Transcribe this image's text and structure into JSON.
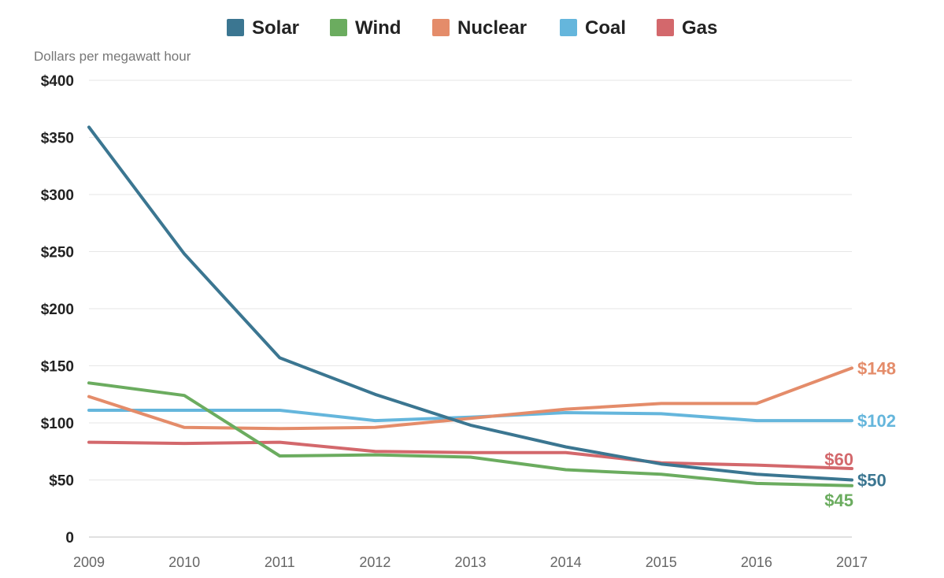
{
  "chart_data": {
    "type": "line",
    "title": "",
    "xlabel": "",
    "ylabel": "Dollars per megawatt hour",
    "categories": [
      "2009",
      "2010",
      "2011",
      "2012",
      "2013",
      "2014",
      "2015",
      "2016",
      "2017"
    ],
    "ylim": [
      0,
      400
    ],
    "yticks": [
      0,
      50,
      100,
      150,
      200,
      250,
      300,
      350,
      400
    ],
    "ytick_labels": [
      "0",
      "$50",
      "$100",
      "$150",
      "$200",
      "$250",
      "$300",
      "$350",
      "$400"
    ],
    "grid": true,
    "legend_position": "top",
    "series": [
      {
        "name": "Solar",
        "color": "#3b7691",
        "values": [
          359,
          248,
          157,
          125,
          98,
          79,
          64,
          55,
          50
        ],
        "end_label": "$50",
        "label_offset": 0
      },
      {
        "name": "Wind",
        "color": "#6bac5f",
        "values": [
          135,
          124,
          71,
          72,
          70,
          59,
          55,
          47,
          45
        ],
        "end_label": "$45",
        "label_offset": 18
      },
      {
        "name": "Nuclear",
        "color": "#e48c6a",
        "values": [
          123,
          96,
          95,
          96,
          104,
          112,
          117,
          117,
          148
        ],
        "end_label": "$148",
        "label_offset": 0
      },
      {
        "name": "Coal",
        "color": "#65b6dc",
        "values": [
          111,
          111,
          111,
          102,
          105,
          109,
          108,
          102,
          102
        ],
        "end_label": "$102",
        "label_offset": 0
      },
      {
        "name": "Gas",
        "color": "#d3686c",
        "values": [
          83,
          82,
          83,
          75,
          74,
          74,
          65,
          63,
          60
        ],
        "end_label": "$60",
        "label_offset": -12
      }
    ]
  }
}
